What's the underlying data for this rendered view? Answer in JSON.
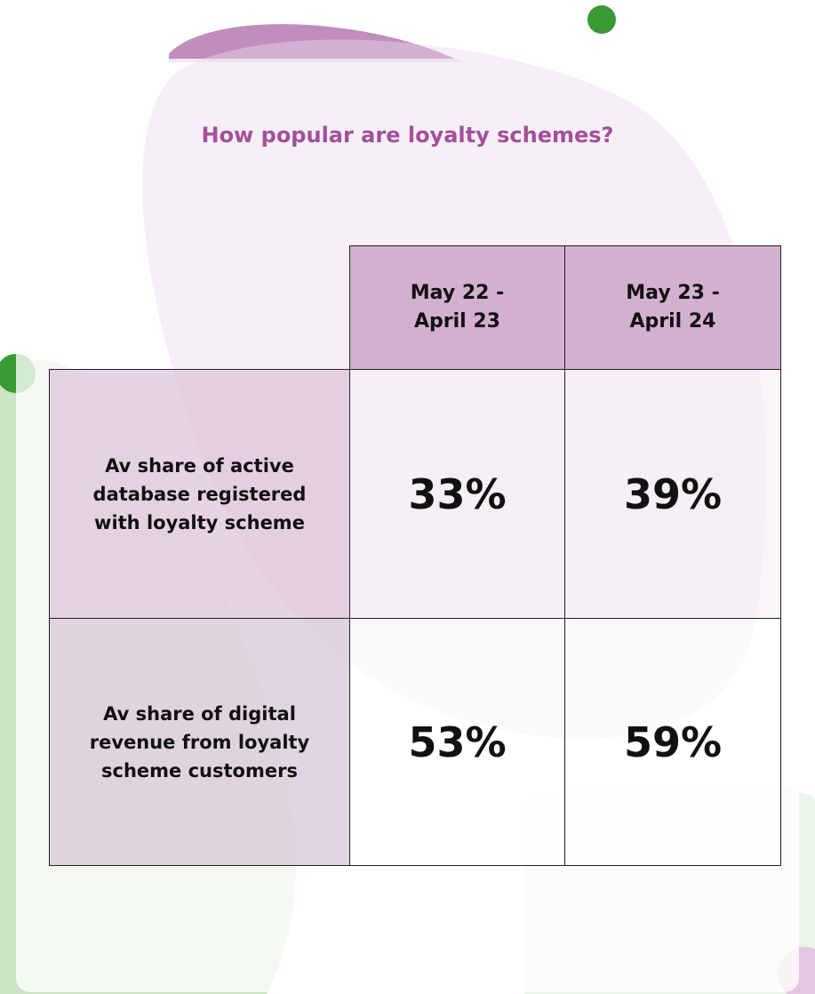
{
  "title": "How popular are loyalty schemes?",
  "table": {
    "header": [
      "May 22 - April 23",
      "May 23 - April 24"
    ],
    "rows": [
      [
        "Av share of active database registered with loyalty scheme",
        "33%",
        "39%"
      ],
      [
        "Av share of digital revenue from loyalty scheme customers",
        "53%",
        "59%"
      ]
    ]
  }
}
